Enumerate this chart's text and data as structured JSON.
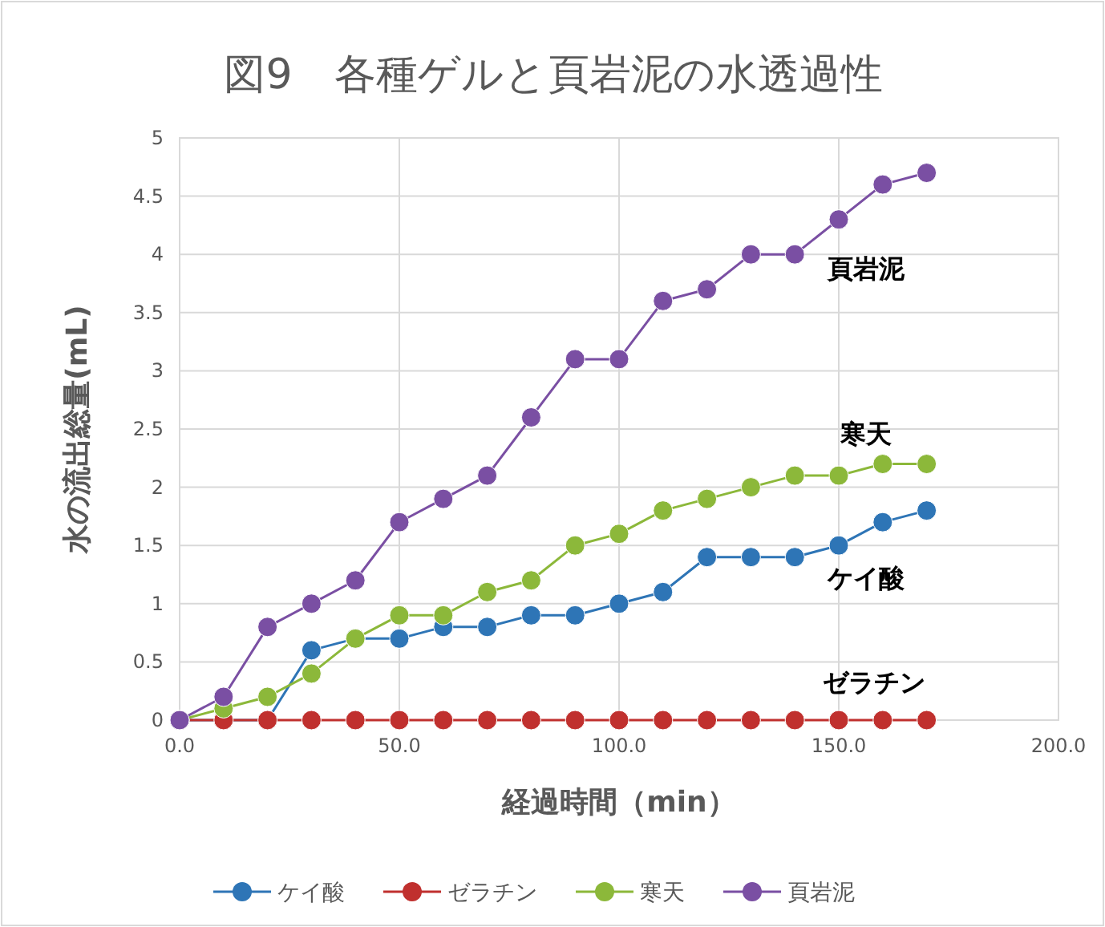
{
  "chart_data": {
    "type": "line",
    "title": "図9　各種ゲルと頁岩泥の水透過性",
    "xlabel": "経過時間（min）",
    "ylabel": "水の流出総量(mL)",
    "x": [
      0,
      10,
      20,
      30,
      40,
      50,
      60,
      70,
      80,
      90,
      100,
      110,
      120,
      130,
      140,
      150,
      160,
      170
    ],
    "series": [
      {
        "name": "ケイ酸",
        "color": "#2e75b6",
        "values": [
          0,
          0,
          0,
          0.6,
          0.7,
          0.7,
          0.8,
          0.8,
          0.9,
          0.9,
          1.0,
          1.1,
          1.4,
          1.4,
          1.4,
          1.5,
          1.7,
          1.8
        ]
      },
      {
        "name": "ゼラチン",
        "color": "#c0302e",
        "values": [
          0,
          0,
          0,
          0,
          0,
          0,
          0,
          0,
          0,
          0,
          0,
          0,
          0,
          0,
          0,
          0,
          0,
          0
        ]
      },
      {
        "name": "寒天",
        "color": "#8cb83a",
        "values": [
          0,
          0.1,
          0.2,
          0.4,
          0.7,
          0.9,
          0.9,
          1.1,
          1.2,
          1.5,
          1.6,
          1.8,
          1.9,
          2.0,
          2.1,
          2.1,
          2.2,
          2.2
        ]
      },
      {
        "name": "頁岩泥",
        "color": "#7a4fa3",
        "values": [
          0,
          0.2,
          0.8,
          1.0,
          1.2,
          1.7,
          1.9,
          2.1,
          2.6,
          3.1,
          3.1,
          3.6,
          3.7,
          4.0,
          4.0,
          4.3,
          4.6,
          4.7
        ]
      }
    ],
    "annotations": [
      "頁岩泥",
      "寒天",
      "ケイ酸",
      "ゼラチン"
    ],
    "xlim": [
      0,
      200
    ],
    "ylim": [
      0,
      5
    ],
    "xticks": [
      {
        "value": 0,
        "label": "0.0"
      },
      {
        "value": 50,
        "label": "50.0"
      },
      {
        "value": 100,
        "label": "100.0"
      },
      {
        "value": 150,
        "label": "150.0"
      },
      {
        "value": 200,
        "label": "200.0"
      }
    ],
    "yticks": [
      0,
      0.5,
      1,
      1.5,
      2,
      2.5,
      3,
      3.5,
      4,
      4.5,
      5
    ],
    "grid": true,
    "legend": "bottom",
    "marker": "circle",
    "line_style": "solid"
  }
}
